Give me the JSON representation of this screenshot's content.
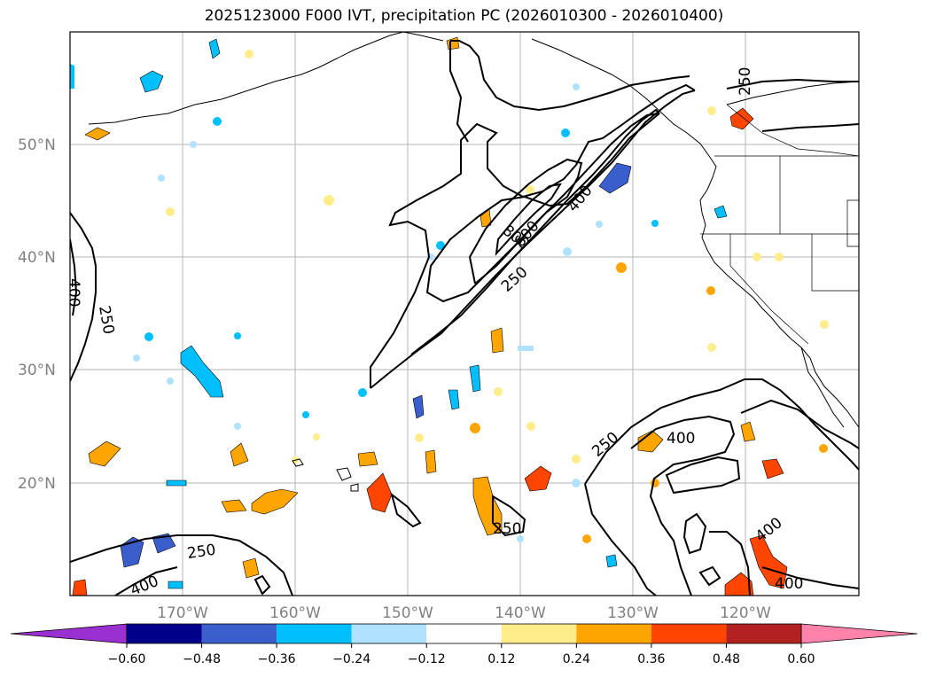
{
  "title": "2025123000 F000 IVT, precipitation PC (2026010300 - 2026010400)",
  "lat_labels": [
    "50°N",
    "40°N",
    "30°N",
    "20°N"
  ],
  "lon_labels": [
    "170°W",
    "160°W",
    "150°W",
    "140°W",
    "130°W",
    "120°W"
  ],
  "colorbar": {
    "ticks": [
      "−0.60",
      "−0.48",
      "−0.36",
      "−0.24",
      "−0.12",
      "0.12",
      "0.24",
      "0.36",
      "0.48",
      "0.60"
    ],
    "colors": [
      "#9b30d0",
      "#00008b",
      "#3a5fcd",
      "#00bfff",
      "#b0e2ff",
      "#ffffff",
      "#ffec8b",
      "#ffa500",
      "#ff4500",
      "#b22222",
      "#ff82ab"
    ]
  },
  "contour_labels": [
    {
      "id": "c250-west",
      "text": "250"
    },
    {
      "id": "c400-west",
      "text": "400"
    },
    {
      "id": "c250-ne",
      "text": "250"
    },
    {
      "id": "c800",
      "text": "800"
    },
    {
      "id": "c600",
      "text": "600"
    },
    {
      "id": "c400-center",
      "text": "400"
    },
    {
      "id": "c250-center",
      "text": "250"
    },
    {
      "id": "c250-se",
      "text": "250"
    },
    {
      "id": "c400-se",
      "text": "400"
    },
    {
      "id": "c250-south",
      "text": "250"
    },
    {
      "id": "c250-sw",
      "text": "250"
    },
    {
      "id": "c400-sw",
      "text": "400"
    },
    {
      "id": "c400-e",
      "text": "400"
    },
    {
      "id": "c400-br",
      "text": "400"
    }
  ]
}
